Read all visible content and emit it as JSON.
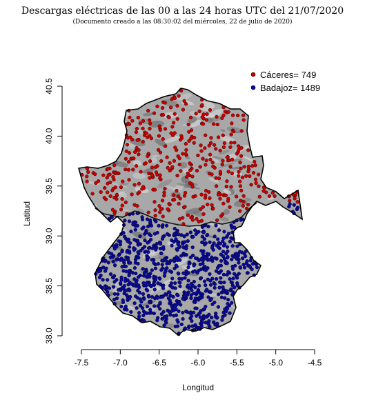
{
  "title": "Descargas eléctricas de las 00 a las 24 horas UTC del 21/07/2020",
  "subtitle": "(Documento creado a las 08:30:02 del miércoles, 22 de julio de 2020)",
  "chart_data": {
    "type": "scatter",
    "xlabel": "Longitud",
    "ylabel": "Latitud",
    "xlim": [
      -7.5,
      -4.5
    ],
    "ylim": [
      38.0,
      40.5
    ],
    "x_ticks": [
      "-7.5",
      "-7.0",
      "-6.5",
      "-6.0",
      "-5.5",
      "-5.0",
      "-4.5"
    ],
    "y_ticks": [
      "38.0",
      "38.5",
      "39.0",
      "39.5",
      "40.0",
      "40.5"
    ],
    "legend_position": "top-right",
    "series": [
      {
        "name": "Cáceres= 749",
        "color": "#cc0000",
        "count": 749
      },
      {
        "name": "Badajoz= 1489",
        "color": "#0a0a96",
        "count": 1489
      }
    ],
    "background_color": "#a8a8a8"
  }
}
